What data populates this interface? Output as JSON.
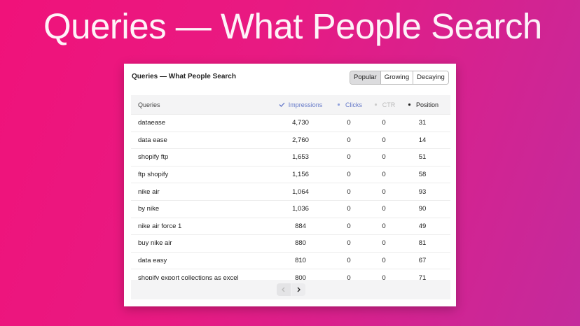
{
  "title": "Queries — What People Search",
  "card": {
    "title": "Queries — What People Search",
    "tabs": [
      "Popular",
      "Growing",
      "Decaying"
    ],
    "table": {
      "columns": [
        "Queries",
        "Impressions",
        "Clicks",
        "CTR",
        "Position"
      ],
      "rows": [
        [
          "dataease",
          "4,730",
          "0",
          "0",
          "31"
        ],
        [
          "data ease",
          "2,760",
          "0",
          "0",
          "14"
        ],
        [
          "shopify ftp",
          "1,653",
          "0",
          "0",
          "51"
        ],
        [
          "ftp shopify",
          "1,156",
          "0",
          "0",
          "58"
        ],
        [
          "nike air",
          "1,064",
          "0",
          "0",
          "93"
        ],
        [
          "by nike",
          "1,036",
          "0",
          "0",
          "90"
        ],
        [
          "nike air force 1",
          "884",
          "0",
          "0",
          "49"
        ],
        [
          "buy nike air",
          "880",
          "0",
          "0",
          "81"
        ],
        [
          "data easy",
          "810",
          "0",
          "0",
          "67"
        ],
        [
          "shopify export collections as excel",
          "800",
          "0",
          "0",
          "71"
        ]
      ]
    }
  }
}
